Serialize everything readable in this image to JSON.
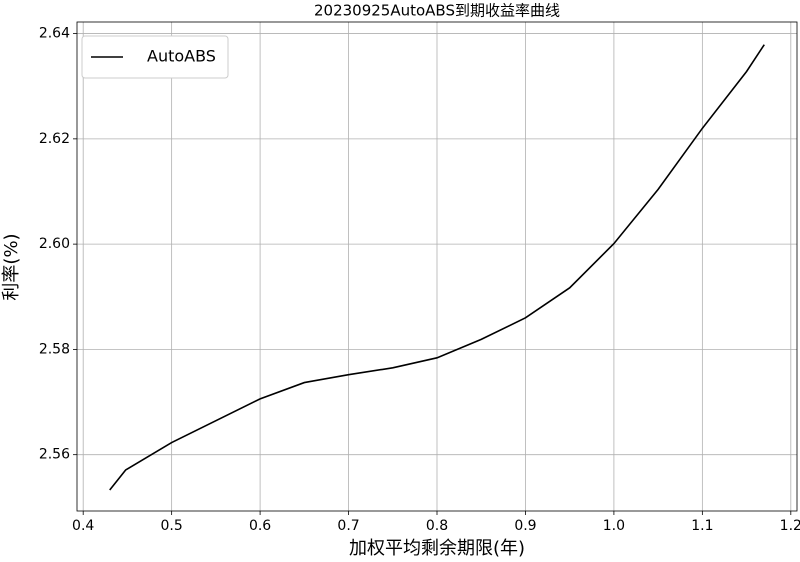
{
  "chart_data": {
    "type": "line",
    "title": "20230925AutoABS到期收益率曲线",
    "x_label": "加权平均剩余期限(年)",
    "y_label": "利率(%)",
    "x": [
      0.43,
      0.448,
      0.5,
      0.6,
      0.65,
      0.7,
      0.75,
      0.8,
      0.85,
      0.9,
      0.95,
      1.0,
      1.05,
      1.1,
      1.15,
      1.17
    ],
    "series": [
      {
        "name": "AutoABS",
        "color": "#000000",
        "values": [
          2.5533,
          2.5571,
          2.5623,
          2.5706,
          2.5737,
          2.5752,
          2.5765,
          2.5784,
          2.5819,
          2.586,
          2.5917,
          2.6001,
          2.6104,
          2.622,
          2.6328,
          2.6379
        ]
      }
    ],
    "xlim": [
      0.393,
      1.207
    ],
    "ylim": [
      2.5493,
      2.6422
    ],
    "xticks": [
      0.4,
      0.5,
      0.6,
      0.7,
      0.8,
      0.9,
      {
        "value": 1,
        "label": "1.0"
      },
      1.1,
      1.2
    ],
    "yticks": [
      2.56,
      2.58,
      {
        "value": 2.6,
        "label": "2.60"
      },
      2.62,
      2.64
    ],
    "grid": true,
    "legend": "upper left"
  }
}
